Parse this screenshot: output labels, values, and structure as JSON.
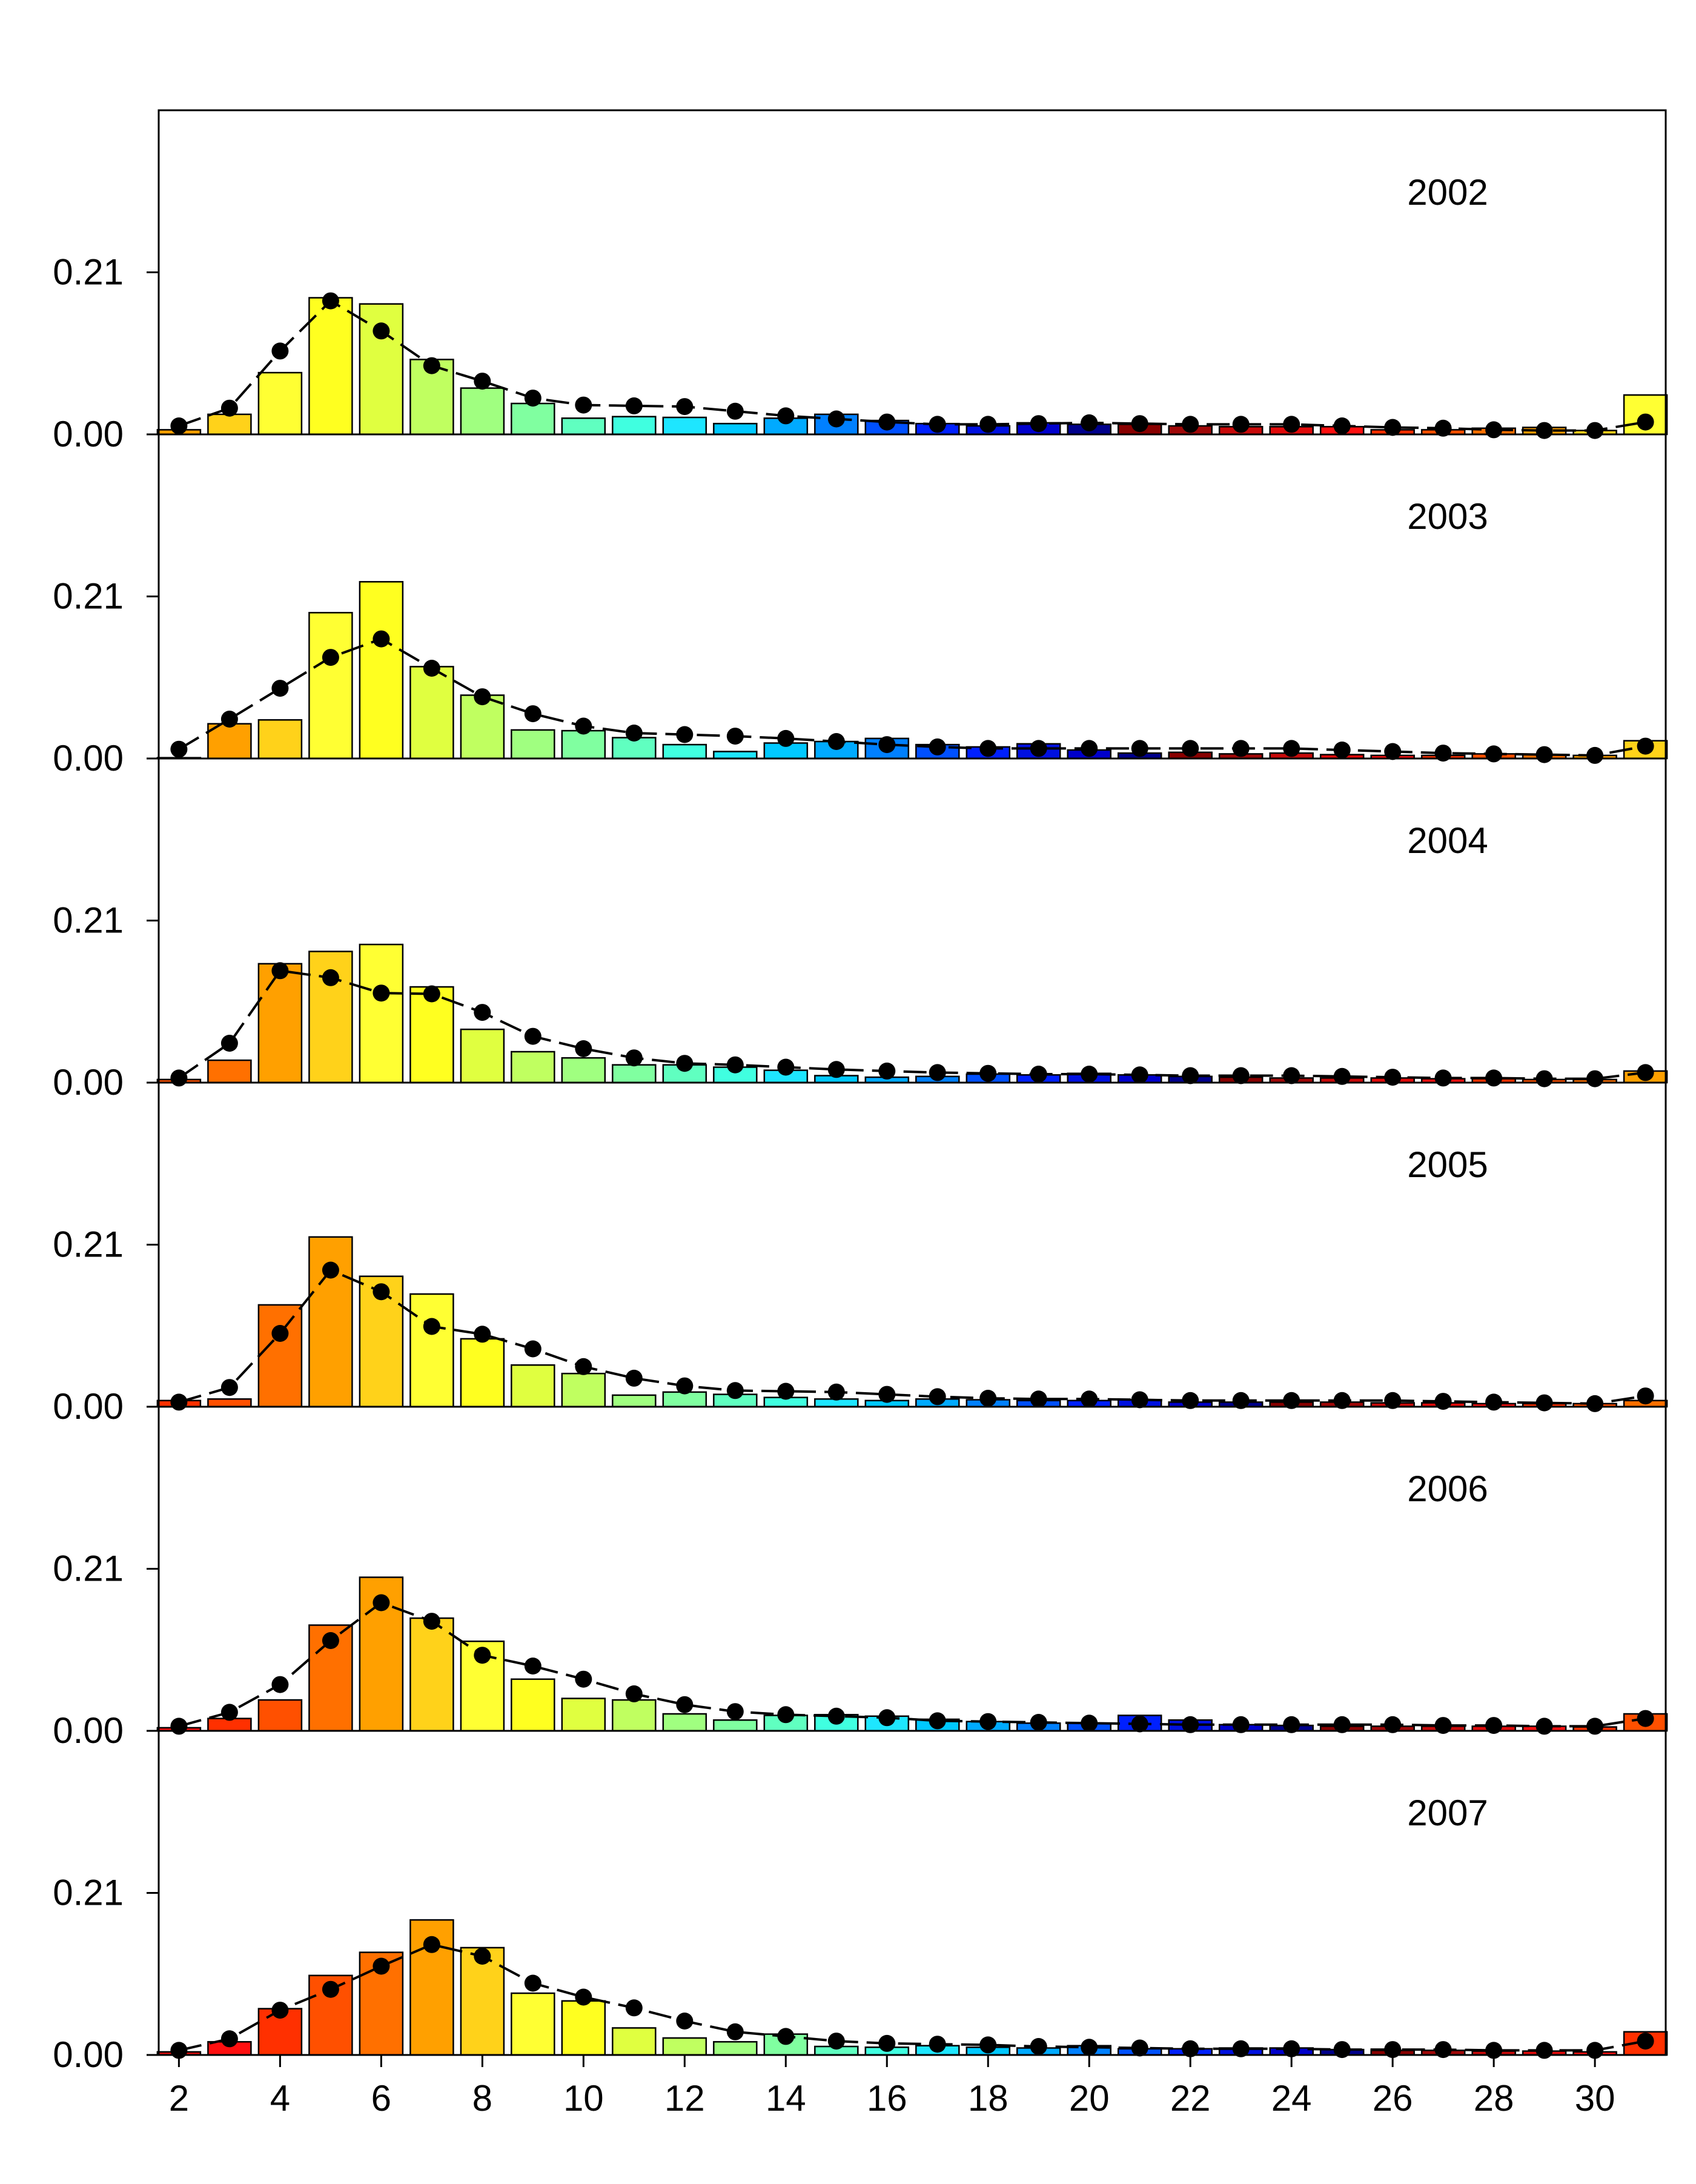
{
  "chart_data": {
    "type": "bar",
    "x": [
      2,
      3,
      4,
      5,
      6,
      7,
      8,
      9,
      10,
      11,
      12,
      13,
      14,
      15,
      16,
      17,
      18,
      19,
      20,
      21,
      22,
      23,
      24,
      25,
      26,
      27,
      28,
      29,
      30,
      31
    ],
    "xticks": [
      "2",
      "4",
      "6",
      "8",
      "10",
      "12",
      "14",
      "16",
      "18",
      "20",
      "22",
      "24",
      "26",
      "28",
      "30"
    ],
    "yticks": [
      "0.00",
      "0.21"
    ],
    "ylim": [
      0,
      0.42
    ],
    "xlim": [
      1.6,
      31.4
    ],
    "grid": false,
    "legend": "none",
    "observed_style": "bars",
    "predicted_style": "dashed line with filled circles",
    "panels": [
      {
        "year_label": "2002",
        "observed": [
          0.006,
          0.026,
          0.08,
          0.177,
          0.169,
          0.097,
          0.06,
          0.04,
          0.021,
          0.023,
          0.022,
          0.014,
          0.021,
          0.026,
          0.018,
          0.014,
          0.011,
          0.015,
          0.013,
          0.013,
          0.011,
          0.01,
          0.01,
          0.01,
          0.006,
          0.006,
          0.008,
          0.009,
          0.005,
          0.051
        ],
        "predicted": [
          0.011,
          0.034,
          0.108,
          0.173,
          0.134,
          0.089,
          0.069,
          0.047,
          0.038,
          0.037,
          0.036,
          0.03,
          0.024,
          0.02,
          0.016,
          0.013,
          0.013,
          0.014,
          0.015,
          0.014,
          0.013,
          0.013,
          0.013,
          0.011,
          0.009,
          0.008,
          0.006,
          0.005,
          0.005,
          0.016
        ]
      },
      {
        "year_label": "2003",
        "observed": [
          0.001,
          0.045,
          0.05,
          0.189,
          0.229,
          0.119,
          0.082,
          0.037,
          0.036,
          0.027,
          0.018,
          0.009,
          0.02,
          0.022,
          0.026,
          0.018,
          0.015,
          0.019,
          0.011,
          0.007,
          0.008,
          0.006,
          0.007,
          0.005,
          0.004,
          0.004,
          0.006,
          0.005,
          0.004,
          0.023
        ],
        "predicted": [
          0.012,
          0.051,
          0.091,
          0.131,
          0.155,
          0.117,
          0.08,
          0.058,
          0.042,
          0.033,
          0.031,
          0.029,
          0.026,
          0.022,
          0.018,
          0.015,
          0.013,
          0.013,
          0.013,
          0.013,
          0.013,
          0.013,
          0.013,
          0.011,
          0.009,
          0.007,
          0.006,
          0.005,
          0.004,
          0.016
        ]
      },
      {
        "year_label": "2004",
        "observed": [
          0.004,
          0.029,
          0.154,
          0.17,
          0.179,
          0.124,
          0.069,
          0.04,
          0.032,
          0.023,
          0.023,
          0.02,
          0.016,
          0.009,
          0.007,
          0.008,
          0.011,
          0.01,
          0.012,
          0.01,
          0.008,
          0.007,
          0.006,
          0.006,
          0.006,
          0.005,
          0.005,
          0.004,
          0.004,
          0.015
        ],
        "predicted": [
          0.006,
          0.051,
          0.145,
          0.136,
          0.116,
          0.115,
          0.091,
          0.06,
          0.044,
          0.032,
          0.025,
          0.023,
          0.02,
          0.017,
          0.015,
          0.013,
          0.012,
          0.011,
          0.011,
          0.01,
          0.009,
          0.009,
          0.009,
          0.008,
          0.007,
          0.006,
          0.006,
          0.005,
          0.005,
          0.013
        ]
      },
      {
        "year_label": "2005",
        "observed": [
          0.008,
          0.01,
          0.132,
          0.22,
          0.169,
          0.146,
          0.088,
          0.054,
          0.043,
          0.015,
          0.019,
          0.016,
          0.012,
          0.01,
          0.008,
          0.01,
          0.009,
          0.008,
          0.008,
          0.009,
          0.006,
          0.006,
          0.006,
          0.006,
          0.005,
          0.005,
          0.004,
          0.004,
          0.004,
          0.008
        ],
        "predicted": [
          0.006,
          0.025,
          0.095,
          0.177,
          0.149,
          0.104,
          0.094,
          0.075,
          0.052,
          0.037,
          0.027,
          0.021,
          0.02,
          0.019,
          0.016,
          0.013,
          0.011,
          0.01,
          0.01,
          0.009,
          0.008,
          0.008,
          0.008,
          0.008,
          0.008,
          0.007,
          0.006,
          0.005,
          0.004,
          0.014
        ]
      },
      {
        "year_label": "2006",
        "observed": [
          0.004,
          0.016,
          0.04,
          0.137,
          0.199,
          0.146,
          0.116,
          0.067,
          0.042,
          0.04,
          0.022,
          0.014,
          0.02,
          0.021,
          0.019,
          0.015,
          0.012,
          0.01,
          0.01,
          0.02,
          0.014,
          0.008,
          0.007,
          0.006,
          0.006,
          0.006,
          0.006,
          0.006,
          0.005,
          0.022
        ],
        "predicted": [
          0.006,
          0.024,
          0.06,
          0.117,
          0.166,
          0.142,
          0.098,
          0.084,
          0.067,
          0.048,
          0.034,
          0.025,
          0.021,
          0.019,
          0.017,
          0.013,
          0.012,
          0.011,
          0.01,
          0.009,
          0.008,
          0.008,
          0.008,
          0.008,
          0.008,
          0.007,
          0.007,
          0.006,
          0.006,
          0.016
        ]
      },
      {
        "year_label": "2007",
        "observed": [
          0.004,
          0.017,
          0.06,
          0.103,
          0.133,
          0.175,
          0.139,
          0.08,
          0.07,
          0.035,
          0.022,
          0.017,
          0.027,
          0.011,
          0.01,
          0.012,
          0.01,
          0.009,
          0.012,
          0.008,
          0.008,
          0.009,
          0.009,
          0.007,
          0.006,
          0.006,
          0.005,
          0.005,
          0.004,
          0.03
        ],
        "predicted": [
          0.006,
          0.021,
          0.058,
          0.085,
          0.115,
          0.143,
          0.128,
          0.093,
          0.075,
          0.061,
          0.044,
          0.03,
          0.024,
          0.018,
          0.015,
          0.014,
          0.013,
          0.011,
          0.01,
          0.009,
          0.008,
          0.008,
          0.008,
          0.007,
          0.007,
          0.007,
          0.006,
          0.006,
          0.006,
          0.018
        ]
      }
    ]
  },
  "colors": {
    "axis": "#000000",
    "predicted": "#000000",
    "palette_by_cohort": [
      "#ffff33",
      "#ffd21a",
      "#ffa000",
      "#ff7000",
      "#ff5000",
      "#ff3000",
      "#ff1010",
      "#e00a0a",
      "#c80a0a",
      "#a00808",
      "#880000",
      "#00008b",
      "#0000cc",
      "#0010e0",
      "#0020ff",
      "#0050ff",
      "#0080ff",
      "#00aaff",
      "#00c8ff",
      "#1ee6ff",
      "#40ffe0",
      "#60ffc0",
      "#80ffa0",
      "#a0ff80",
      "#c0ff60",
      "#e0ff40",
      "#ffff20"
    ]
  }
}
